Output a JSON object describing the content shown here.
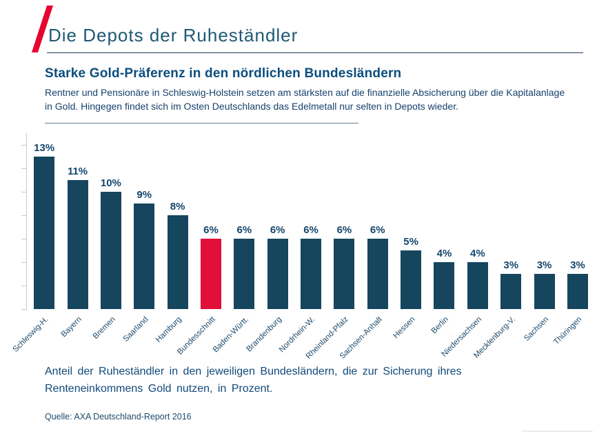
{
  "header": {
    "title": "Die Depots der Ruheständler"
  },
  "content": {
    "title": "Starke Gold-Präferenz in den nördlichen Bundesländern",
    "subtitle": "Rentner und Pensionäre in Schleswig-Holstein setzen am stärksten auf die finanzielle Absicherung über die Kapitalanlage in Gold. Hingegen findet sich im Osten Deutschlands das Edelmetall nur selten in Depots wieder.",
    "caption": "Anteil der Ruheständler in den jeweiligen Bundesländern, die zur Sicherung ihres Renteneinkommens Gold nutzen, in Prozent.",
    "source": "Quelle: AXA Deutschland-Report 2016"
  },
  "chart_data": {
    "type": "bar",
    "categories": [
      "Schleswig-H.",
      "Bayern",
      "Bremen",
      "Saarland",
      "Hamburg",
      "Bundesschnitt",
      "Baden-Württ.",
      "Brandenburg",
      "Nordrhein-W.",
      "Rheinland-Pfalz",
      "Sachsen-Anhalt",
      "Hessen",
      "Berlin",
      "Niedersachsen",
      "Mecklenburg-V.",
      "Sachsen",
      "Thüringen"
    ],
    "values": [
      13,
      11,
      10,
      9,
      8,
      6,
      6,
      6,
      6,
      6,
      6,
      5,
      4,
      4,
      3,
      3,
      3
    ],
    "data_labels": [
      "13%",
      "11%",
      "10%",
      "9%",
      "8%",
      "6%",
      "6%",
      "6%",
      "6%",
      "6%",
      "6%",
      "5%",
      "4%",
      "4%",
      "3%",
      "3%",
      "3%"
    ],
    "highlight_index": 5,
    "highlight_category": "Bundesschnitt",
    "title": "Starke Gold-Präferenz in den nördlichen Bundesländern",
    "xlabel": "",
    "ylabel": "",
    "ylim": [
      0,
      15
    ],
    "tick_step_percent": 2,
    "grid": false,
    "legend": false,
    "value_labels_shown": true,
    "bar_color": "#16455e",
    "highlight_color": "#e0103a",
    "value_label_color": "#14456b",
    "axis_color": "#c9c9c9"
  },
  "colors": {
    "accent_red": "#e4062f",
    "navy": "#16455e",
    "title_blue": "#0b4d7d",
    "header_teal": "#1f5876"
  }
}
